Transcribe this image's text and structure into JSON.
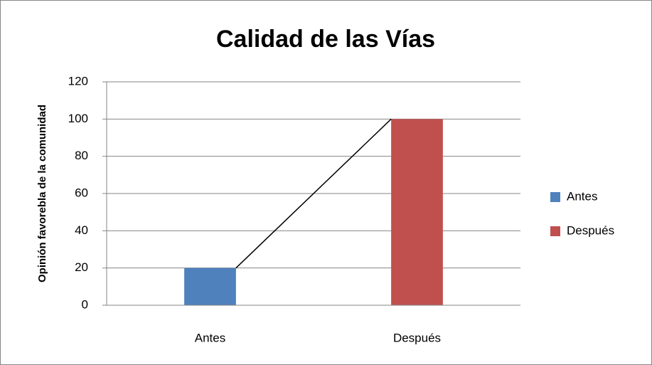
{
  "chart_data": {
    "type": "bar",
    "title": "Calidad de las Vías",
    "y_label": "Opinión favorebla de la comunidad",
    "categories": [
      "Antes",
      "Después"
    ],
    "series": [
      {
        "name": "Antes",
        "color": "#4f81bd",
        "values": [
          20,
          null
        ]
      },
      {
        "name": "Después",
        "color": "#c0504d",
        "values": [
          null,
          100
        ]
      }
    ],
    "ylim": [
      0,
      120
    ],
    "yticks": [
      0,
      20,
      40,
      60,
      80,
      100,
      120
    ],
    "grid": true,
    "legend": "right"
  }
}
